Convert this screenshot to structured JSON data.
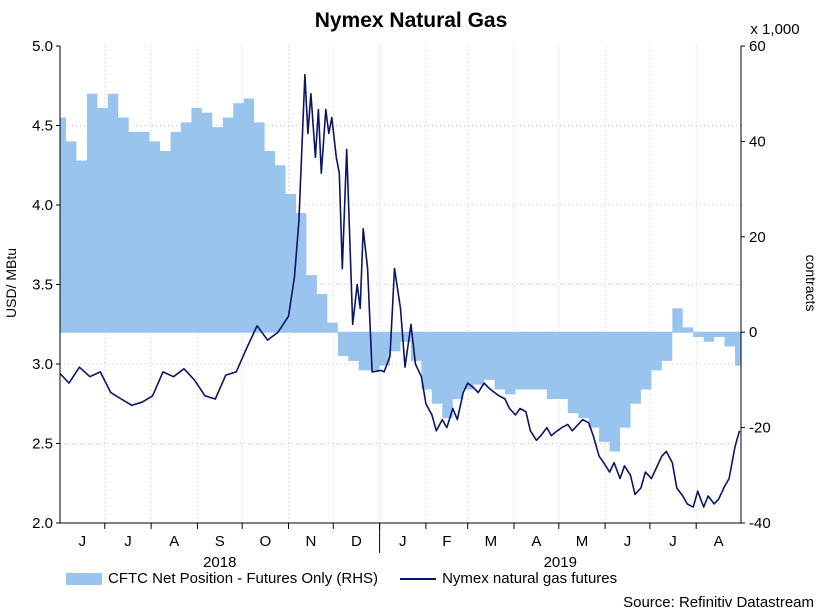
{
  "chart_data": {
    "type": "line",
    "title": "Nymex Natural Gas",
    "ylabel": "USD/ MBtu",
    "y2label": "contracts",
    "y2_unit": "x 1,000",
    "ylim": [
      2.0,
      5.0
    ],
    "y2lim": [
      -40,
      60
    ],
    "yticks": [
      "5.0",
      "4.5",
      "4.0",
      "3.5",
      "3.0",
      "2.5",
      "2.0"
    ],
    "y2ticks": [
      "60",
      "40",
      "20",
      "0",
      "-20",
      "-40"
    ],
    "xlim": [
      "2018-06-01",
      "2019-08-31"
    ],
    "month_labels": [
      "J",
      "J",
      "A",
      "S",
      "O",
      "N",
      "D",
      "J",
      "F",
      "M",
      "A",
      "M",
      "J",
      "J",
      "A"
    ],
    "year_labels": [
      "2018",
      "2019"
    ],
    "grid": true,
    "legend_position": "bottom",
    "source": "Source: Refinitiv Datastream",
    "colors": {
      "area": "#99c4ee",
      "line": "#0a1565"
    },
    "series": [
      {
        "name": "CFTC Net Position - Futures Only (RHS)",
        "type": "area",
        "axis": "right",
        "x": [
          "2018-06-01",
          "2018-06-05",
          "2018-06-12",
          "2018-06-19",
          "2018-06-26",
          "2018-07-03",
          "2018-07-10",
          "2018-07-17",
          "2018-07-24",
          "2018-07-31",
          "2018-08-07",
          "2018-08-14",
          "2018-08-21",
          "2018-08-28",
          "2018-09-04",
          "2018-09-11",
          "2018-09-18",
          "2018-09-25",
          "2018-10-02",
          "2018-10-09",
          "2018-10-16",
          "2018-10-23",
          "2018-10-30",
          "2018-11-06",
          "2018-11-13",
          "2018-11-20",
          "2018-11-27",
          "2018-12-04",
          "2018-12-11",
          "2018-12-18",
          "2018-12-25",
          "2019-01-01",
          "2019-01-08",
          "2019-01-15",
          "2019-01-22",
          "2019-01-29",
          "2019-02-05",
          "2019-02-12",
          "2019-02-19",
          "2019-02-26",
          "2019-03-05",
          "2019-03-12",
          "2019-03-19",
          "2019-03-26",
          "2019-04-02",
          "2019-04-09",
          "2019-04-16",
          "2019-04-23",
          "2019-04-30",
          "2019-05-07",
          "2019-05-14",
          "2019-05-21",
          "2019-05-28",
          "2019-06-04",
          "2019-06-11",
          "2019-06-18",
          "2019-06-25",
          "2019-07-02",
          "2019-07-09",
          "2019-07-16",
          "2019-07-23",
          "2019-07-30",
          "2019-08-06",
          "2019-08-13",
          "2019-08-20",
          "2019-08-27",
          "2019-08-31"
        ],
        "values": [
          45,
          40,
          36,
          50,
          47,
          50,
          45,
          42,
          42,
          40,
          38,
          42,
          44,
          47,
          46,
          43,
          45,
          48,
          49,
          44,
          38,
          35,
          29,
          25,
          12,
          8,
          2,
          -5,
          -6,
          -8,
          -8,
          -7,
          -4,
          -2,
          -6,
          -12,
          -15,
          -18,
          -14,
          -12,
          -11,
          -10,
          -12,
          -13,
          -12,
          -12,
          -12,
          -14,
          -14,
          -17,
          -18,
          -20,
          -23,
          -25,
          -20,
          -15,
          -12,
          -8,
          -6,
          5,
          1,
          -1,
          -2,
          -1,
          -3,
          -7,
          -3
        ],
        "step": true
      },
      {
        "name": "Nymex natural gas futures",
        "type": "line",
        "axis": "left",
        "x": [
          "2018-06-01",
          "2018-06-07",
          "2018-06-14",
          "2018-06-21",
          "2018-06-28",
          "2018-07-05",
          "2018-07-12",
          "2018-07-19",
          "2018-07-26",
          "2018-08-02",
          "2018-08-09",
          "2018-08-16",
          "2018-08-23",
          "2018-08-30",
          "2018-09-06",
          "2018-09-13",
          "2018-09-20",
          "2018-09-27",
          "2018-10-04",
          "2018-10-11",
          "2018-10-18",
          "2018-10-25",
          "2018-11-01",
          "2018-11-05",
          "2018-11-08",
          "2018-11-12",
          "2018-11-14",
          "2018-11-16",
          "2018-11-19",
          "2018-11-21",
          "2018-11-23",
          "2018-11-26",
          "2018-11-28",
          "2018-11-30",
          "2018-12-03",
          "2018-12-05",
          "2018-12-07",
          "2018-12-10",
          "2018-12-12",
          "2018-12-14",
          "2018-12-17",
          "2018-12-19",
          "2018-12-21",
          "2018-12-24",
          "2018-12-27",
          "2019-01-02",
          "2019-01-04",
          "2019-01-08",
          "2019-01-11",
          "2019-01-15",
          "2019-01-18",
          "2019-01-22",
          "2019-01-25",
          "2019-01-29",
          "2019-02-01",
          "2019-02-05",
          "2019-02-08",
          "2019-02-12",
          "2019-02-15",
          "2019-02-19",
          "2019-02-22",
          "2019-02-26",
          "2019-03-01",
          "2019-03-05",
          "2019-03-08",
          "2019-03-12",
          "2019-03-15",
          "2019-03-19",
          "2019-03-22",
          "2019-03-26",
          "2019-03-29",
          "2019-04-02",
          "2019-04-05",
          "2019-04-09",
          "2019-04-12",
          "2019-04-16",
          "2019-04-19",
          "2019-04-23",
          "2019-04-26",
          "2019-04-30",
          "2019-05-03",
          "2019-05-07",
          "2019-05-10",
          "2019-05-14",
          "2019-05-17",
          "2019-05-21",
          "2019-05-24",
          "2019-05-28",
          "2019-05-31",
          "2019-06-04",
          "2019-06-07",
          "2019-06-11",
          "2019-06-14",
          "2019-06-18",
          "2019-06-21",
          "2019-06-25",
          "2019-06-28",
          "2019-07-02",
          "2019-07-05",
          "2019-07-09",
          "2019-07-12",
          "2019-07-16",
          "2019-07-19",
          "2019-07-23",
          "2019-07-26",
          "2019-07-30",
          "2019-08-02",
          "2019-08-06",
          "2019-08-09",
          "2019-08-13",
          "2019-08-16",
          "2019-08-20",
          "2019-08-23",
          "2019-08-27",
          "2019-08-30"
        ],
        "values": [
          2.94,
          2.88,
          2.98,
          2.92,
          2.95,
          2.82,
          2.78,
          2.74,
          2.76,
          2.8,
          2.95,
          2.92,
          2.97,
          2.9,
          2.8,
          2.78,
          2.93,
          2.95,
          3.1,
          3.24,
          3.15,
          3.2,
          3.3,
          3.55,
          3.9,
          4.82,
          4.45,
          4.7,
          4.3,
          4.6,
          4.2,
          4.6,
          4.45,
          4.55,
          4.3,
          4.2,
          3.6,
          4.35,
          3.8,
          3.25,
          3.5,
          3.35,
          3.85,
          3.6,
          2.95,
          2.96,
          2.95,
          3.05,
          3.6,
          3.35,
          2.98,
          3.25,
          3.0,
          2.92,
          2.75,
          2.68,
          2.58,
          2.65,
          2.6,
          2.72,
          2.65,
          2.82,
          2.88,
          2.85,
          2.82,
          2.88,
          2.85,
          2.82,
          2.8,
          2.78,
          2.72,
          2.68,
          2.72,
          2.7,
          2.58,
          2.52,
          2.55,
          2.6,
          2.55,
          2.58,
          2.6,
          2.62,
          2.58,
          2.62,
          2.65,
          2.63,
          2.55,
          2.42,
          2.38,
          2.32,
          2.38,
          2.28,
          2.36,
          2.3,
          2.18,
          2.22,
          2.32,
          2.28,
          2.34,
          2.42,
          2.45,
          2.38,
          2.22,
          2.17,
          2.12,
          2.1,
          2.2,
          2.1,
          2.17,
          2.12,
          2.15,
          2.23,
          2.28,
          2.48,
          2.58
        ]
      }
    ]
  }
}
